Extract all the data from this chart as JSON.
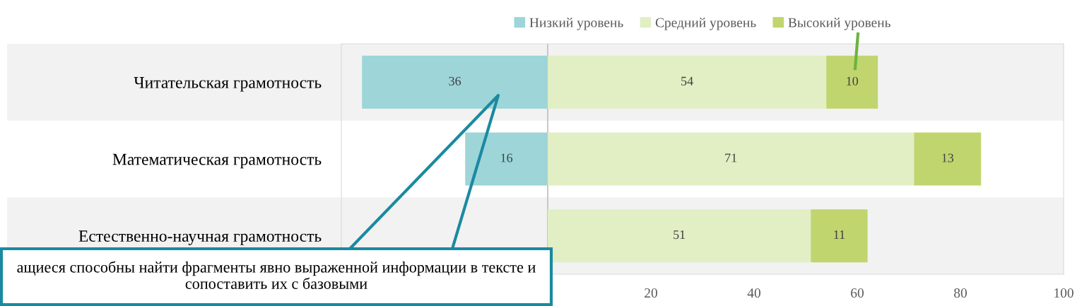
{
  "chart_data": {
    "type": "bar",
    "orientation": "horizontal",
    "stacked": true,
    "categories": [
      "Читательская грамотность",
      "Математическая грамотность",
      "Естественно-научная грамотность"
    ],
    "series": [
      {
        "name": "Низкий уровень",
        "color": "#9dd5d8",
        "base": [
          -36,
          -16,
          null
        ],
        "values": [
          36,
          16,
          null
        ],
        "value_labels": [
          "36",
          "16",
          null
        ]
      },
      {
        "name": "Средний уровень",
        "color": "#e2eec4",
        "values": [
          54,
          71,
          51
        ],
        "value_labels": [
          "54",
          "71",
          "51"
        ]
      },
      {
        "name": "Высокий уровень",
        "color": "#c0d56e",
        "values": [
          10,
          13,
          11
        ],
        "value_labels": [
          "10",
          "13",
          "11"
        ]
      }
    ],
    "xlim": [
      -40,
      100
    ],
    "xticks": [
      20,
      40,
      60,
      80,
      100
    ],
    "ref_lines": [
      {
        "axis": "x",
        "value": 0,
        "color": "#bfbfbf"
      }
    ],
    "grid": false,
    "legend": "top",
    "annotations": [
      "ащиеся способны найти фрагменты явно выраженной информации в тексте и сопоставить их с базовыми"
    ]
  }
}
